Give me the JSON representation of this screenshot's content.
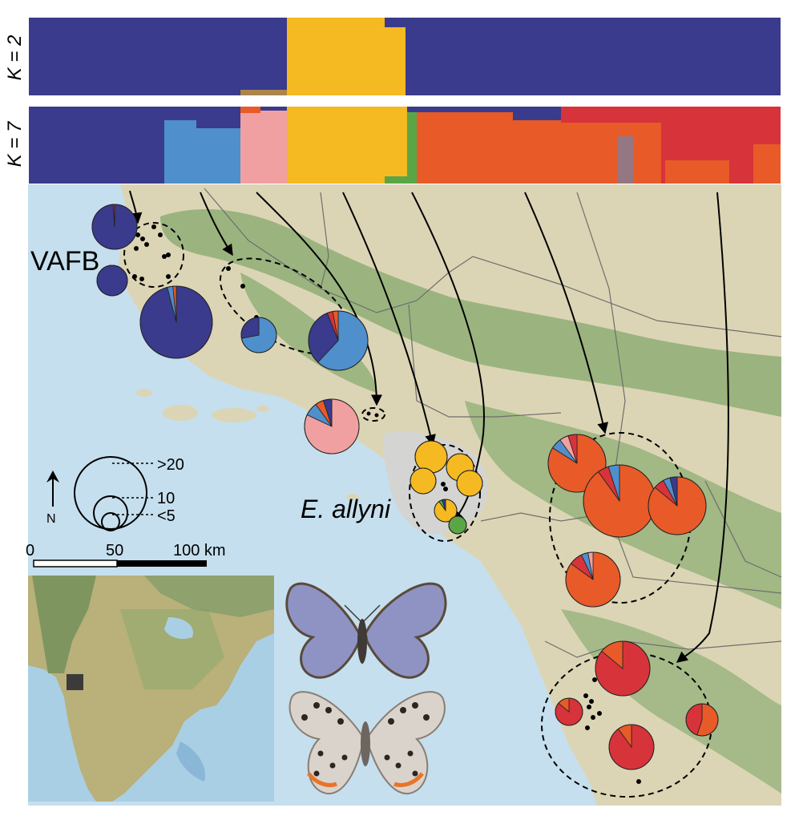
{
  "structure_bars": {
    "k2_label": "K = 2",
    "k7_label": "K = 7",
    "colors": {
      "navy": "#3a3b8c",
      "yellow": "#f5b921",
      "lightblue": "#4f8fcc",
      "pink": "#f0a0a0",
      "green": "#5aa646",
      "orange": "#e85a28",
      "red": "#d7333a"
    }
  },
  "map": {
    "region_labels": {
      "vafb": "VAFB",
      "e_allyni": "E. allyni"
    },
    "legend": {
      "size_labels": [
        ">20",
        "10",
        "<5"
      ],
      "north_label": "N",
      "scale_labels": [
        "0",
        "50",
        "100 km"
      ]
    },
    "colors": {
      "ocean": "#c5dfee",
      "land": "#dcd5b5",
      "mountain": "#8fae76",
      "urban": "#d4d4d2",
      "border": "#6e6e6e"
    }
  }
}
